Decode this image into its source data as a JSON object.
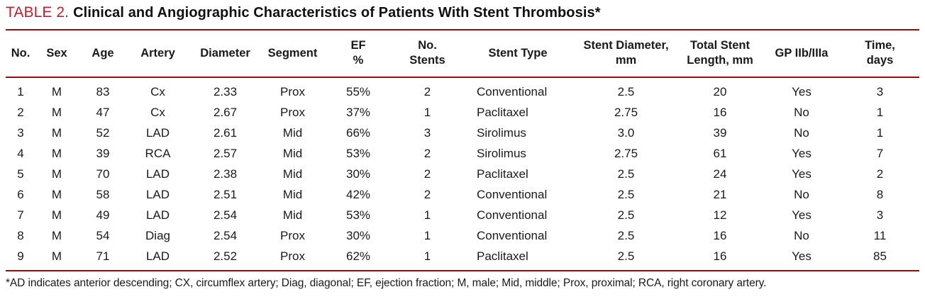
{
  "title": {
    "label": "TABLE 2.",
    "text": "Clinical and Angiographic Characteristics of Patients With Stent Thrombosis*"
  },
  "colors": {
    "title_red": "#c01f2f",
    "rule_red": "#9e0b0f",
    "text": "#1a1a1a"
  },
  "table": {
    "columns": [
      "No.",
      "Sex",
      "Age",
      "Artery",
      "Diameter",
      "Segment",
      "EF\n%",
      "No.\nStents",
      "Stent Type",
      "Stent Diameter,\nmm",
      "Total Stent\nLength, mm",
      "GP IIb/IIIa",
      "Time,\ndays"
    ],
    "rows": [
      [
        "1",
        "M",
        "83",
        "Cx",
        "2.33",
        "Prox",
        "55%",
        "2",
        "Conventional",
        "2.5",
        "20",
        "Yes",
        "3"
      ],
      [
        "2",
        "M",
        "47",
        "Cx",
        "2.67",
        "Prox",
        "37%",
        "1",
        "Paclitaxel",
        "2.75",
        "16",
        "No",
        "1"
      ],
      [
        "3",
        "M",
        "52",
        "LAD",
        "2.61",
        "Mid",
        "66%",
        "3",
        "Sirolimus",
        "3.0",
        "39",
        "No",
        "1"
      ],
      [
        "4",
        "M",
        "39",
        "RCA",
        "2.57",
        "Mid",
        "53%",
        "2",
        "Sirolimus",
        "2.75",
        "61",
        "Yes",
        "7"
      ],
      [
        "5",
        "M",
        "70",
        "LAD",
        "2.38",
        "Mid",
        "30%",
        "2",
        "Paclitaxel",
        "2.5",
        "24",
        "Yes",
        "2"
      ],
      [
        "6",
        "M",
        "58",
        "LAD",
        "2.51",
        "Mid",
        "42%",
        "2",
        "Conventional",
        "2.5",
        "21",
        "No",
        "8"
      ],
      [
        "7",
        "M",
        "49",
        "LAD",
        "2.54",
        "Mid",
        "53%",
        "1",
        "Conventional",
        "2.5",
        "12",
        "Yes",
        "3"
      ],
      [
        "8",
        "M",
        "54",
        "Diag",
        "2.54",
        "Prox",
        "30%",
        "1",
        "Conventional",
        "2.5",
        "16",
        "No",
        "11"
      ],
      [
        "9",
        "M",
        "71",
        "LAD",
        "2.52",
        "Prox",
        "62%",
        "1",
        "Paclitaxel",
        "2.5",
        "16",
        "Yes",
        "85"
      ]
    ]
  },
  "footnote": "*AD indicates anterior descending; CX, circumflex artery; Diag, diagonal; EF, ejection fraction; M, male; Mid, middle; Prox, proximal; RCA, right coronary artery."
}
